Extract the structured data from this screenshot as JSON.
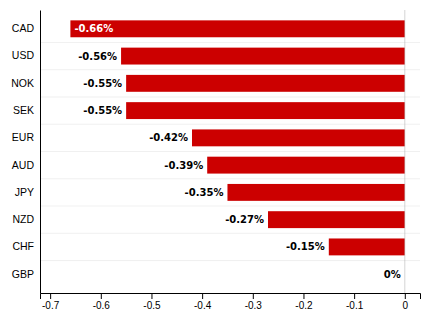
{
  "chart_data": {
    "type": "bar",
    "orientation": "horizontal",
    "categories": [
      "GBP",
      "CHF",
      "NZD",
      "JPY",
      "AUD",
      "EUR",
      "SEK",
      "NOK",
      "USD",
      "CAD"
    ],
    "values": [
      0.0,
      -0.15,
      -0.27,
      -0.35,
      -0.39,
      -0.42,
      -0.55,
      -0.55,
      -0.56,
      -0.66
    ],
    "value_labels": [
      "0%",
      "-0.15%",
      "-0.27%",
      "-0.35%",
      "-0.39%",
      "-0.42%",
      "-0.55%",
      "-0.55%",
      "-0.56%",
      "-0.66%"
    ],
    "data_labels": true,
    "color": "#cc0000",
    "xlim": [
      -0.72,
      0.03
    ],
    "xticks": [
      -0.7,
      -0.6,
      -0.5,
      -0.4,
      -0.3,
      -0.2,
      -0.1,
      0
    ]
  }
}
